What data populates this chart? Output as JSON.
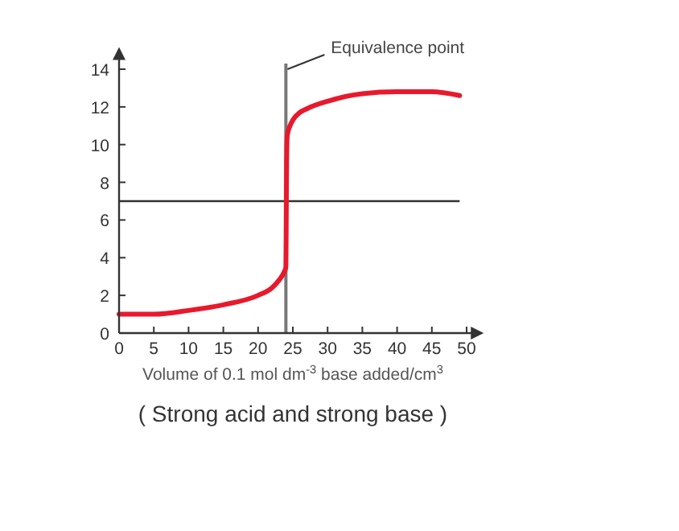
{
  "chart_data": {
    "type": "line",
    "xlabel": "Volume of 0.1 mol dm$^{-3}$ base added/cm$^{3}$",
    "x": [
      0,
      5,
      10,
      15,
      20,
      22,
      23,
      23.7,
      24,
      24.05,
      24.1,
      24.2,
      24.6,
      25,
      26,
      27,
      30,
      35,
      40,
      45,
      49
    ],
    "series": [
      {
        "color": "#e8192c",
        "values": [
          1.0,
          1.0,
          1.2,
          1.5,
          2.0,
          2.4,
          2.8,
          3.2,
          3.5,
          6,
          9,
          10.5,
          11.0,
          11.3,
          11.7,
          11.9,
          12.3,
          12.7,
          12.8,
          12.8,
          12.6
        ]
      }
    ],
    "xlim": [
      0,
      52
    ],
    "ylim": [
      0,
      15
    ],
    "xticks": [
      0,
      5,
      10,
      15,
      20,
      25,
      30,
      35,
      40,
      45,
      50
    ],
    "yticks": [
      0,
      2,
      4,
      6,
      8,
      10,
      12,
      14
    ],
    "ref_lines": [
      {
        "axis": "y",
        "value": 7,
        "color": "#333333"
      },
      {
        "axis": "x",
        "value": 24,
        "color": "#777777"
      }
    ],
    "annotations": [
      {
        "text": "Equivalence point",
        "x": 24,
        "y": 14
      },
      "( Strong acid and strong base )"
    ],
    "grid": false,
    "line_style": "solid"
  }
}
